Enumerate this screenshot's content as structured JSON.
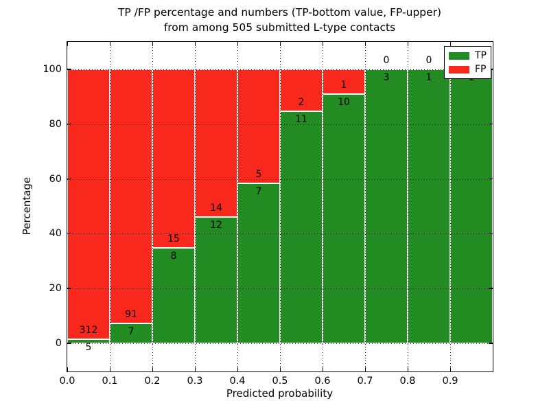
{
  "figure": {
    "title_lines": [
      "TP /FP percentage and numbers (TP-bottom value, FP-upper)",
      "from among 505 submitted L-type contacts"
    ]
  },
  "chart_data": {
    "type": "bar",
    "stacked": true,
    "orientation": "vertical",
    "title": "TP /FP percentage and numbers (TP-bottom value, FP-upper) from among 505 submitted L-type contacts",
    "xlabel": "Predicted probability",
    "ylabel": "Percentage",
    "total_contacts": 505,
    "bin_width": 0.1,
    "bin_starts": [
      0.0,
      0.1,
      0.2,
      0.3,
      0.4,
      0.5,
      0.6,
      0.7,
      0.8,
      0.9
    ],
    "xtick_labels": [
      "0.0",
      "0.1",
      "0.2",
      "0.3",
      "0.4",
      "0.5",
      "0.6",
      "0.7",
      "0.8",
      "0.9"
    ],
    "ytick_values": [
      0,
      20,
      40,
      60,
      80,
      100
    ],
    "xlim": [
      0.0,
      1.0
    ],
    "ylim": [
      -10.3,
      110.0
    ],
    "grid": "dotted black, both axes, drawn over bars",
    "series": [
      {
        "name": "TP",
        "color": "#228b22",
        "stack_position": "bottom",
        "counts": [
          5,
          7,
          8,
          12,
          7,
          11,
          10,
          3,
          1,
          1
        ]
      },
      {
        "name": "FP",
        "color": "#f9281d",
        "stack_position": "top",
        "counts": [
          312,
          91,
          15,
          14,
          5,
          2,
          1,
          0,
          0,
          0
        ]
      }
    ],
    "tp_percent_of_bin": [
      1.6,
      7.1,
      34.8,
      46.2,
      58.3,
      84.6,
      90.9,
      100.0,
      100.0,
      100.0
    ],
    "legend": {
      "position": "upper right",
      "entries": [
        {
          "label": "TP",
          "color": "#228b22"
        },
        {
          "label": "FP",
          "color": "#f9281d"
        }
      ]
    }
  }
}
